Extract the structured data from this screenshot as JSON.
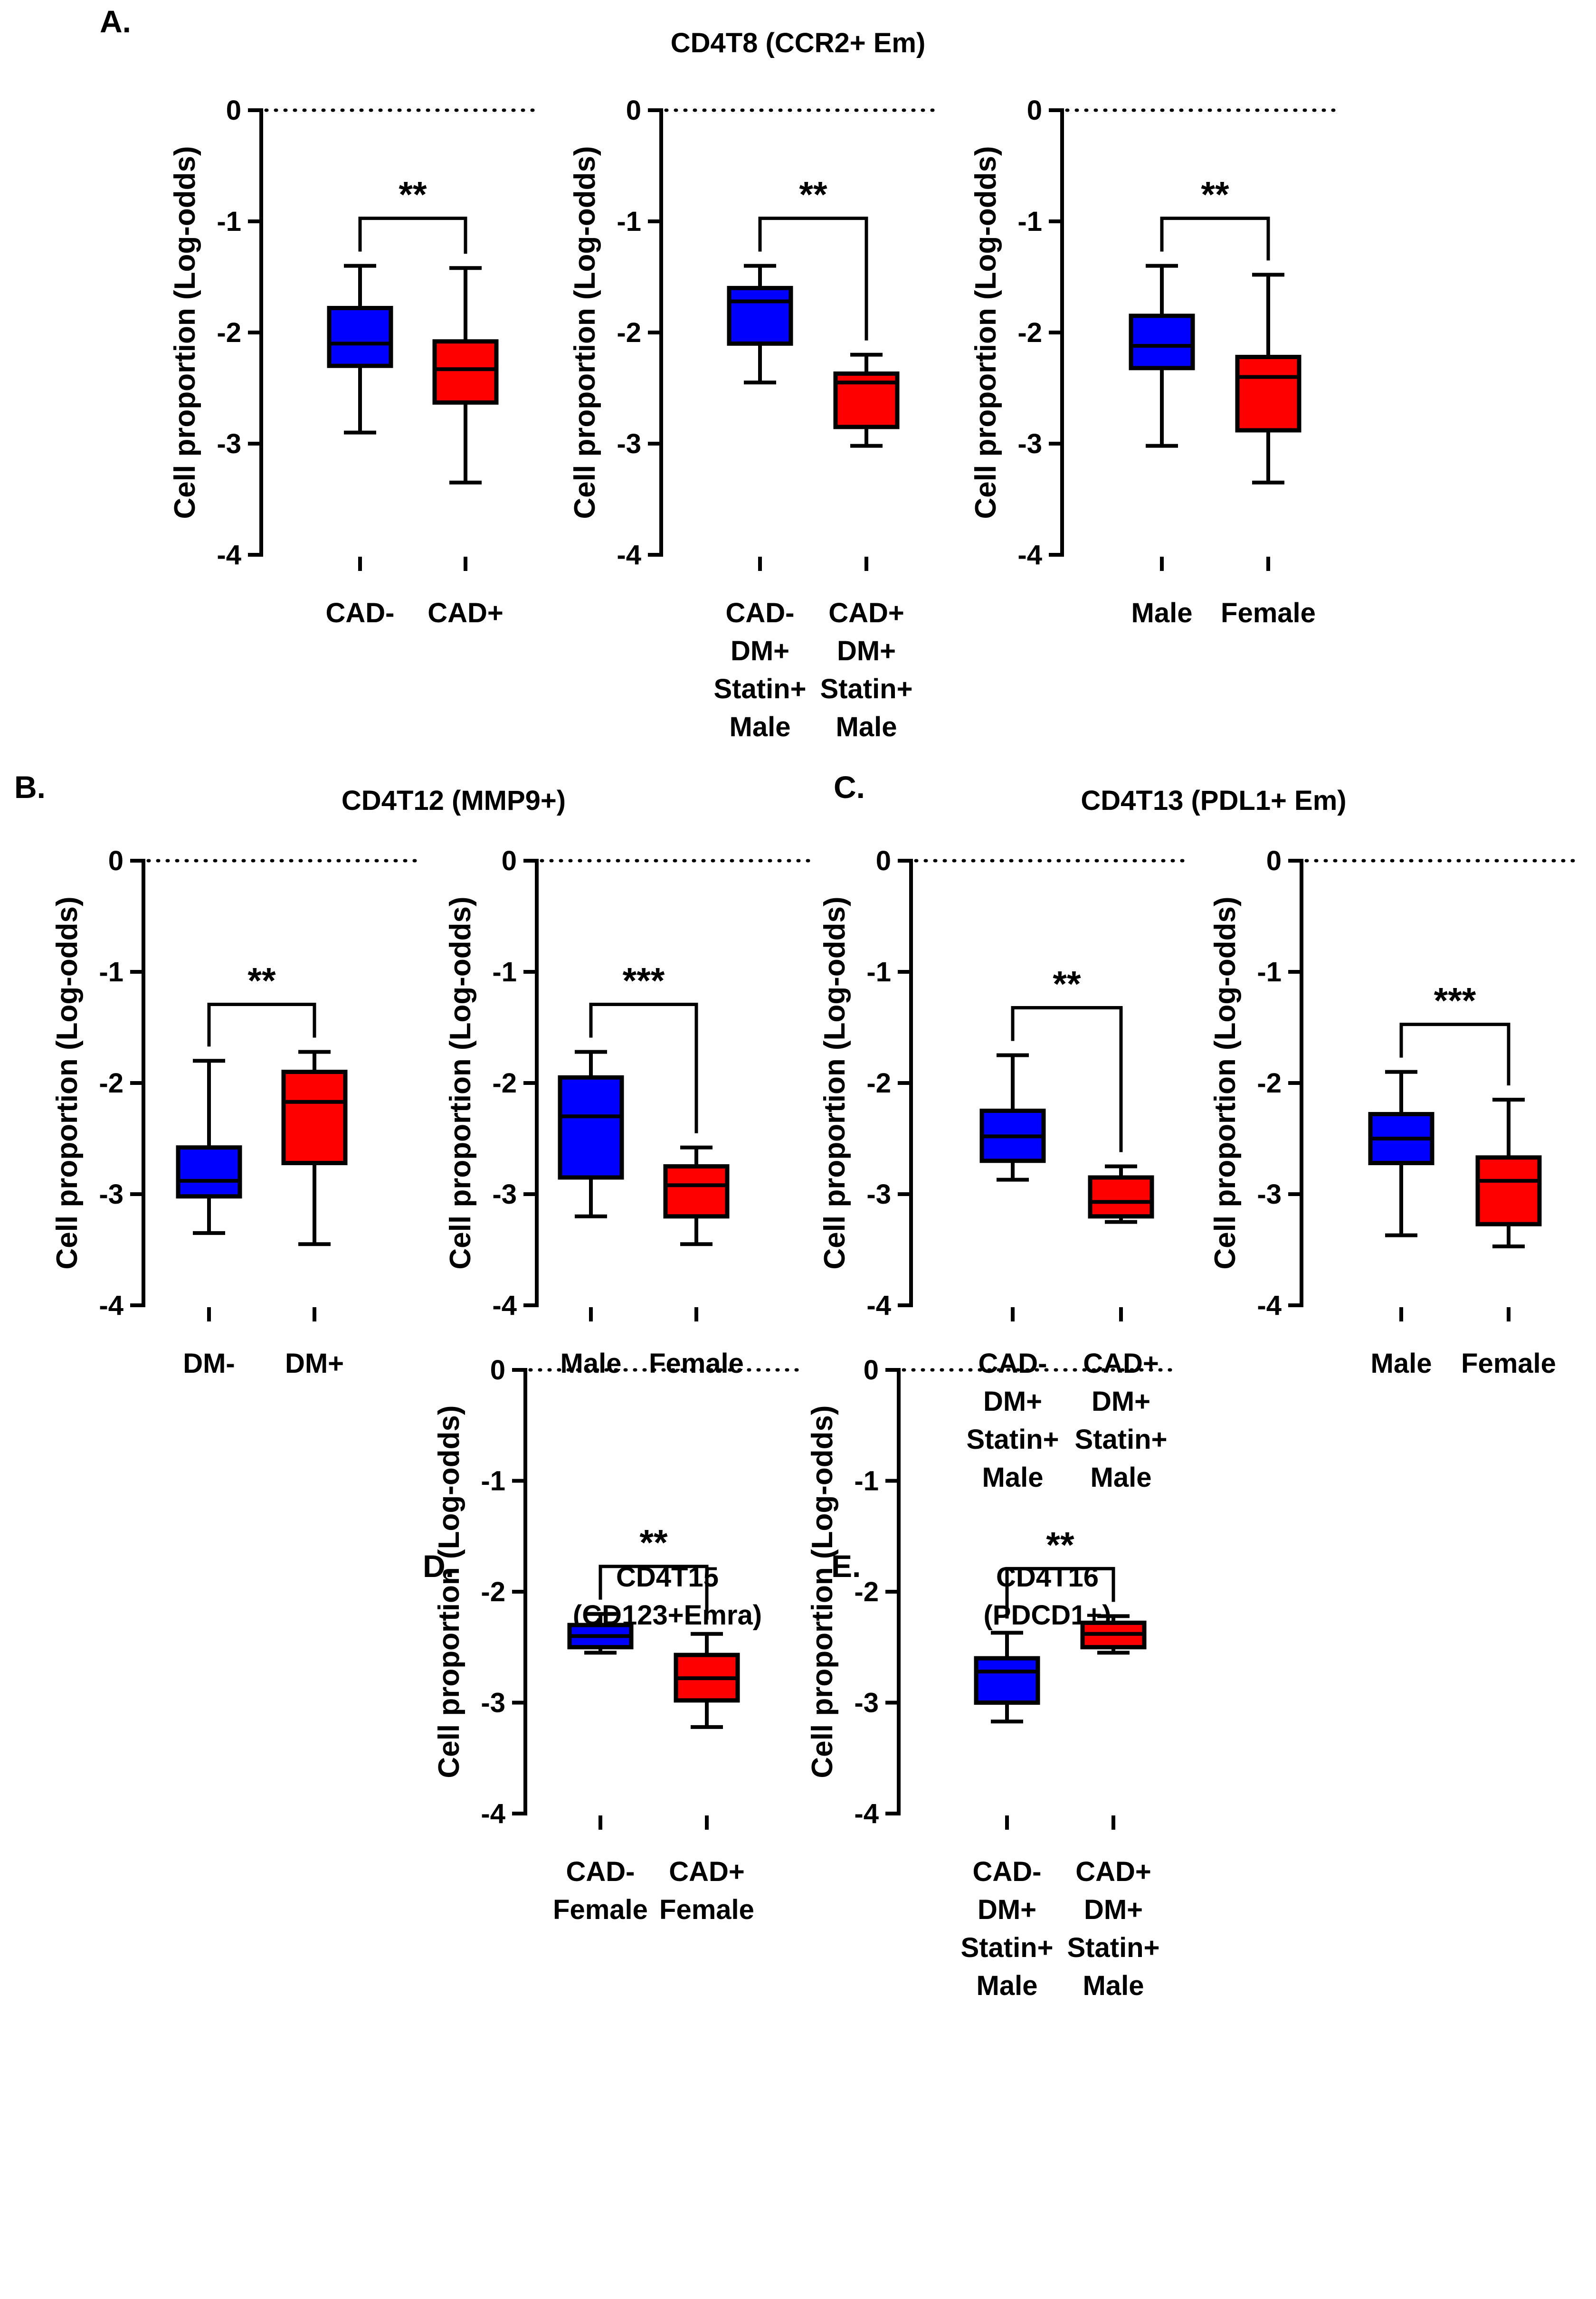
{
  "panel_letters": [
    "A.",
    "B.",
    "C.",
    "D.",
    "E."
  ],
  "group_titles": {
    "A": "CD4T8 (CCR2+ Em)",
    "B": "CD4T12 (MMP9+)",
    "C": "CD4T13 (PDL1+ Em)",
    "D": [
      "CD4T15",
      "(CD123+Emra)"
    ],
    "E": [
      "CD4T16",
      "(PDCD1+)"
    ]
  },
  "colors": {
    "group1": "#0000ff",
    "group2": "#ff0000",
    "stroke": "#000000"
  },
  "chart_data": [
    {
      "type": "box",
      "panel": "A",
      "ylabel": "Cell proportion (Log-odds)",
      "ylim": [
        -4,
        0
      ],
      "yticks": [
        0,
        -1,
        -2,
        -3,
        -4
      ],
      "reference_line": 0,
      "significance": "**",
      "categories": [
        [
          "CAD-"
        ],
        [
          "CAD+"
        ]
      ],
      "boxes": [
        {
          "min": -2.9,
          "q1": -2.3,
          "median": -2.1,
          "q3": -1.78,
          "max": -1.4
        },
        {
          "min": -3.35,
          "q1": -2.63,
          "median": -2.33,
          "q3": -2.08,
          "max": -1.42
        }
      ]
    },
    {
      "type": "box",
      "panel": "A",
      "ylabel": "Cell proportion (Log-odds)",
      "ylim": [
        -4,
        0
      ],
      "yticks": [
        0,
        -1,
        -2,
        -3,
        -4
      ],
      "reference_line": 0,
      "significance": "**",
      "categories": [
        [
          "CAD-",
          "DM+",
          "Statin+",
          "Male"
        ],
        [
          "CAD+",
          "DM+",
          "Statin+",
          "Male"
        ]
      ],
      "boxes": [
        {
          "min": -2.45,
          "q1": -2.1,
          "median": -1.72,
          "q3": -1.6,
          "max": -1.4
        },
        {
          "min": -3.02,
          "q1": -2.85,
          "median": -2.45,
          "q3": -2.37,
          "max": -2.2
        }
      ]
    },
    {
      "type": "box",
      "panel": "A",
      "ylabel": "Cell proportion (Log-odds)",
      "ylim": [
        -4,
        0
      ],
      "yticks": [
        0,
        -1,
        -2,
        -3,
        -4
      ],
      "reference_line": 0,
      "significance": "**",
      "categories": [
        [
          "Male"
        ],
        [
          "Female"
        ]
      ],
      "boxes": [
        {
          "min": -3.02,
          "q1": -2.32,
          "median": -2.12,
          "q3": -1.85,
          "max": -1.4
        },
        {
          "min": -3.35,
          "q1": -2.88,
          "median": -2.4,
          "q3": -2.22,
          "max": -1.48
        }
      ]
    },
    {
      "type": "box",
      "panel": "B",
      "ylabel": "Cell proportion (Log-odds)",
      "ylim": [
        -4,
        0
      ],
      "yticks": [
        0,
        -1,
        -2,
        -3,
        -4
      ],
      "reference_line": 0,
      "significance": "**",
      "categories": [
        [
          "DM-"
        ],
        [
          "DM+"
        ]
      ],
      "boxes": [
        {
          "min": -3.35,
          "q1": -3.02,
          "median": -2.88,
          "q3": -2.58,
          "max": -1.8
        },
        {
          "min": -3.45,
          "q1": -2.72,
          "median": -2.17,
          "q3": -1.9,
          "max": -1.72
        }
      ]
    },
    {
      "type": "box",
      "panel": "B",
      "ylabel": "Cell proportion (Log-odds)",
      "ylim": [
        -4,
        0
      ],
      "yticks": [
        0,
        -1,
        -2,
        -3,
        -4
      ],
      "reference_line": 0,
      "significance": "***",
      "categories": [
        [
          "Male"
        ],
        [
          "Female"
        ]
      ],
      "boxes": [
        {
          "min": -3.2,
          "q1": -2.85,
          "median": -2.3,
          "q3": -1.95,
          "max": -1.72
        },
        {
          "min": -3.45,
          "q1": -3.2,
          "median": -2.92,
          "q3": -2.75,
          "max": -2.58
        }
      ]
    },
    {
      "type": "box",
      "panel": "C",
      "ylabel": "Cell proportion (Log-odds)",
      "ylim": [
        -4,
        0
      ],
      "yticks": [
        0,
        -1,
        -2,
        -3,
        -4
      ],
      "reference_line": 0,
      "significance": "**",
      "categories": [
        [
          "CAD-",
          "DM+",
          "Statin+",
          "Male"
        ],
        [
          "CAD+",
          "DM+",
          "Statin+",
          "Male"
        ]
      ],
      "boxes": [
        {
          "min": -2.87,
          "q1": -2.7,
          "median": -2.48,
          "q3": -2.25,
          "max": -1.75
        },
        {
          "min": -3.25,
          "q1": -3.2,
          "median": -3.07,
          "q3": -2.85,
          "max": -2.75
        }
      ]
    },
    {
      "type": "box",
      "panel": "C",
      "ylabel": "Cell proportion (Log-odds)",
      "ylim": [
        -4,
        0
      ],
      "yticks": [
        0,
        -1,
        -2,
        -3,
        -4
      ],
      "reference_line": 0,
      "significance": "***",
      "categories": [
        [
          "Male"
        ],
        [
          "Female"
        ]
      ],
      "boxes": [
        {
          "min": -3.37,
          "q1": -2.72,
          "median": -2.5,
          "q3": -2.28,
          "max": -1.9
        },
        {
          "min": -3.47,
          "q1": -3.27,
          "median": -2.88,
          "q3": -2.67,
          "max": -2.15
        }
      ]
    },
    {
      "type": "box",
      "panel": "D",
      "ylabel": "Cell proportion (Log-odds)",
      "ylim": [
        -4,
        0
      ],
      "yticks": [
        0,
        -1,
        -2,
        -3,
        -4
      ],
      "reference_line": 0,
      "significance": "**",
      "categories": [
        [
          "CAD-",
          "Female"
        ],
        [
          "CAD+",
          "Female"
        ]
      ],
      "boxes": [
        {
          "min": -2.55,
          "q1": -2.5,
          "median": -2.4,
          "q3": -2.3,
          "max": -2.2
        },
        {
          "min": -3.22,
          "q1": -2.98,
          "median": -2.78,
          "q3": -2.57,
          "max": -2.38
        }
      ]
    },
    {
      "type": "box",
      "panel": "E",
      "ylabel": "Cell proportion (Log-odds)",
      "ylim": [
        -4,
        0
      ],
      "yticks": [
        0,
        -1,
        -2,
        -3,
        -4
      ],
      "reference_line": 0,
      "significance": "**",
      "categories": [
        [
          "CAD-",
          "DM+",
          "Statin+",
          "Male"
        ],
        [
          "CAD+",
          "DM+",
          "Statin+",
          "Male"
        ]
      ],
      "boxes": [
        {
          "min": -3.17,
          "q1": -3.0,
          "median": -2.72,
          "q3": -2.6,
          "max": -2.37
        },
        {
          "min": -2.55,
          "q1": -2.5,
          "median": -2.38,
          "q3": -2.28,
          "max": -2.22
        }
      ]
    }
  ]
}
